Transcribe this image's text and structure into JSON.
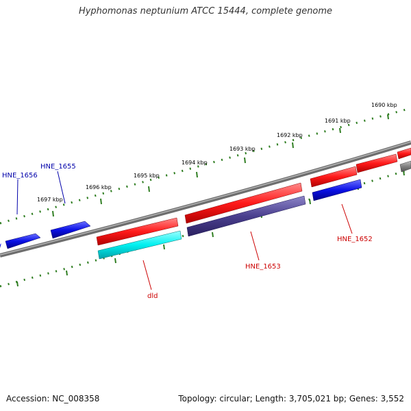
{
  "title": "Hyphomonas neptunium ATCC 15444, complete genome",
  "footer": {
    "accession": "Accession: NC_008358",
    "summary": "Topology: circular; Length: 3,705,021 bp; Genes: 3,552"
  },
  "colors": {
    "backbone": "#8a8a8a",
    "tick": "#2e7d20",
    "gene_forward": "#ff1a1a",
    "gene_reverse": "#0a10e6",
    "gene_cyan": "#00f0f0",
    "gene_slate": "#4a3f8e",
    "gene_gray": "#808080",
    "label_reverse": "#0000aa",
    "label_forward": "#cc0000"
  },
  "kbp_ticks": [
    "1690 kbp",
    "1691 kbp",
    "1692 kbp",
    "1693 kbp",
    "1694 kbp",
    "1695 kbp",
    "1696 kbp",
    "1697 kbp"
  ],
  "gene_labels": [
    "HNE_1656",
    "HNE_1655",
    "HNE_1653",
    "HNE_1652",
    "dld"
  ]
}
